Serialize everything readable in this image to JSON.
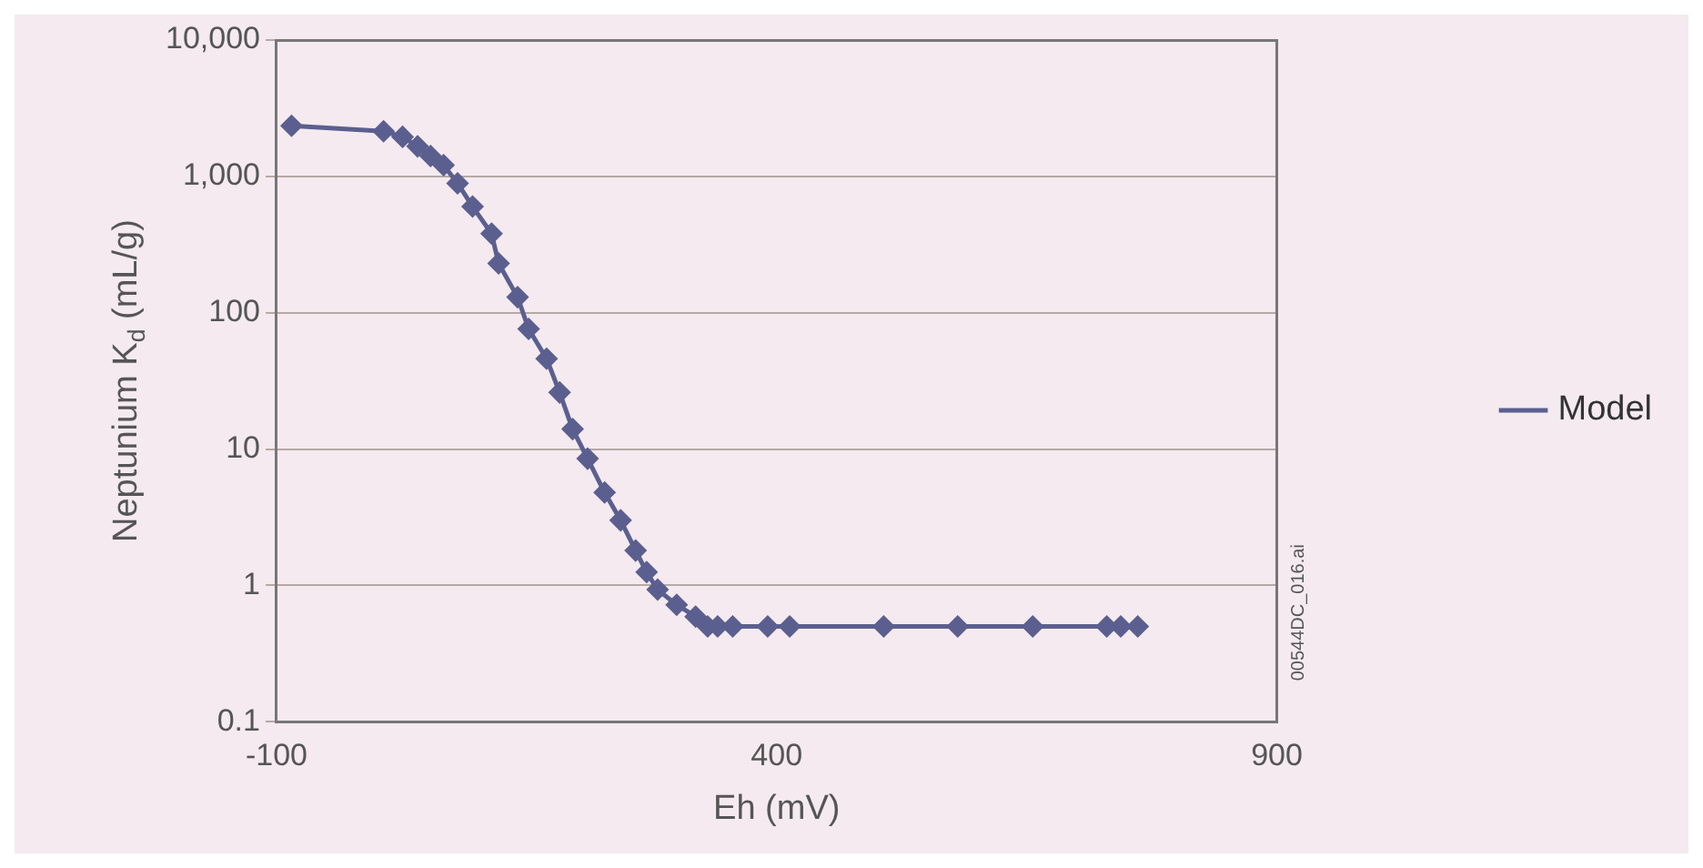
{
  "chart_data": {
    "type": "line",
    "xlabel": "Eh (mV)",
    "ylabel": "Neptunium K$_{d}$ (mL/g)",
    "x": [
      -85,
      7,
      26,
      41,
      54,
      67,
      81,
      96,
      115,
      122,
      141,
      152,
      170,
      183,
      196,
      211,
      228,
      244,
      259,
      270,
      281,
      300,
      319,
      331,
      341,
      356,
      391,
      413,
      507,
      581,
      656,
      730,
      744,
      761
    ],
    "series": [
      {
        "name": "Model",
        "color": "#5b5f8f",
        "values": [
          2350,
          2140,
          1950,
          1660,
          1410,
          1210,
          890,
          600,
          380,
          230,
          130,
          76,
          46,
          26,
          14,
          8.5,
          4.8,
          3.0,
          1.8,
          1.25,
          0.93,
          0.72,
          0.59,
          0.5,
          0.5,
          0.5,
          0.5,
          0.5,
          0.5,
          0.5,
          0.5,
          0.5,
          0.5,
          0.5
        ]
      }
    ],
    "xlim": [
      -100,
      900
    ],
    "xticks": [
      -100,
      400,
      900
    ],
    "ylim": [
      0.1,
      10000
    ],
    "yticks": [
      {
        "value": 0.1,
        "label": "0.1"
      },
      {
        "value": 1,
        "label": "1"
      },
      {
        "value": 10,
        "label": "10"
      },
      {
        "value": 100,
        "label": "100"
      },
      {
        "value": 1000,
        "label": "1,000"
      },
      {
        "value": 10000,
        "label": "10,000"
      }
    ],
    "log": "y",
    "grid": "y",
    "legend": "right",
    "marker": "diamond",
    "line_style": "solid",
    "annotations": [
      "00544DC_016.ai"
    ]
  }
}
